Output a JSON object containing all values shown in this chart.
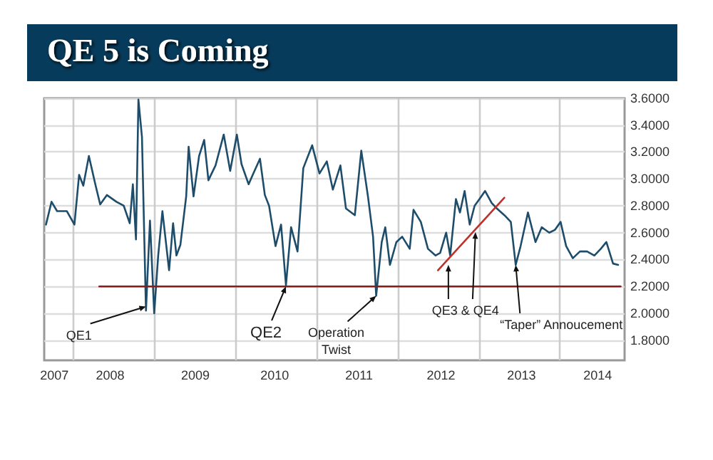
{
  "chart_data": {
    "type": "line",
    "title": "QE 5 is Coming",
    "xlim": [
      "2007-08-25",
      "2014-10-19"
    ],
    "xticks": [
      {
        "value": "2007-10-10",
        "label": "2007"
      },
      {
        "value": "2008-06-17",
        "label": "2008"
      },
      {
        "value": "2009-07-05",
        "label": "2009"
      },
      {
        "value": "2010-06-27",
        "label": "2010"
      },
      {
        "value": "2011-07-12",
        "label": "2011"
      },
      {
        "value": "2012-07-15",
        "label": "2012"
      },
      {
        "value": "2013-07-12",
        "label": "2013"
      },
      {
        "value": "2014-06-20",
        "label": "2014"
      },
      {
        "value": "2008-01-01",
        "label": null
      },
      {
        "value": "2009-01-01",
        "label": null
      },
      {
        "value": "2010-01-01",
        "label": null
      },
      {
        "value": "2011-01-01",
        "label": null
      },
      {
        "value": "2012-01-01",
        "label": null
      },
      {
        "value": "2013-01-01",
        "label": null
      },
      {
        "value": "2014-01-01",
        "label": null
      }
    ],
    "ylim": [
      1.65,
      3.6
    ],
    "yticks": [
      {
        "value": 1.8,
        "label": "1.8000"
      },
      {
        "value": 2.0,
        "label": "2.0000"
      },
      {
        "value": 2.2,
        "label": "2.2000"
      },
      {
        "value": 2.4,
        "label": "2.4000"
      },
      {
        "value": 2.6,
        "label": "2.6000"
      },
      {
        "value": 2.8,
        "label": "2.8000"
      },
      {
        "value": 3.0,
        "label": "3.0000"
      },
      {
        "value": 3.2,
        "label": "3.2000"
      },
      {
        "value": 3.4,
        "label": "3.4000"
      },
      {
        "value": 3.6,
        "label": "3.6000"
      }
    ],
    "grid": true,
    "series": [
      {
        "color": "#1e4d6b",
        "x": [
          "2007-09-02",
          "2007-09-27",
          "2007-10-22",
          "2007-12-05",
          "2008-01-08",
          "2008-01-29",
          "2008-02-17",
          "2008-03-13",
          "2008-04-11",
          "2008-05-03",
          "2008-06-02",
          "2008-07-15",
          "2008-08-17",
          "2008-09-13",
          "2008-09-27",
          "2008-10-11",
          "2008-10-22",
          "2008-11-07",
          "2008-11-25",
          "2008-12-13",
          "2009-01-01",
          "2009-01-19",
          "2009-02-07",
          "2009-03-09",
          "2009-03-27",
          "2009-04-11",
          "2009-04-29",
          "2009-05-25",
          "2009-06-05",
          "2009-06-27",
          "2009-07-22",
          "2009-08-14",
          "2009-09-02",
          "2009-10-04",
          "2009-11-10",
          "2009-12-09",
          "2010-01-08",
          "2010-01-29",
          "2010-03-02",
          "2010-03-23",
          "2010-04-22",
          "2010-05-14",
          "2010-06-02",
          "2010-07-01",
          "2010-07-26",
          "2010-08-17",
          "2010-09-09",
          "2010-10-08",
          "2010-11-03",
          "2010-12-13",
          "2011-01-15",
          "2011-02-17",
          "2011-03-16",
          "2011-04-19",
          "2011-05-14",
          "2011-06-23",
          "2011-07-22",
          "2011-08-21",
          "2011-09-13",
          "2011-09-27",
          "2011-10-22",
          "2011-11-07",
          "2011-11-28",
          "2011-12-27",
          "2012-01-22",
          "2012-02-25",
          "2012-03-13",
          "2012-04-15",
          "2012-05-17",
          "2012-06-20",
          "2012-07-11",
          "2012-08-07",
          "2012-08-25",
          "2012-09-20",
          "2012-10-08",
          "2012-10-29",
          "2012-11-21",
          "2012-12-13",
          "2013-01-04",
          "2013-01-29",
          "2013-02-28",
          "2013-03-23",
          "2013-04-26",
          "2013-05-25",
          "2013-06-16",
          "2013-07-08",
          "2013-08-10",
          "2013-09-13",
          "2013-10-11",
          "2013-11-14",
          "2013-12-09",
          "2014-01-04",
          "2014-01-29",
          "2014-02-28",
          "2014-04-01",
          "2014-05-03",
          "2014-06-05",
          "2014-07-04",
          "2014-07-29",
          "2014-08-28",
          "2014-09-20"
        ],
        "values": [
          2.66,
          2.83,
          2.76,
          2.76,
          2.66,
          3.03,
          2.95,
          3.17,
          2.96,
          2.81,
          2.88,
          2.83,
          2.8,
          2.67,
          2.96,
          2.55,
          3.59,
          3.31,
          2.02,
          2.69,
          2.0,
          2.43,
          2.76,
          2.32,
          2.67,
          2.43,
          2.51,
          2.87,
          3.24,
          2.87,
          3.17,
          3.29,
          2.99,
          3.1,
          3.33,
          3.06,
          3.33,
          3.11,
          2.96,
          3.04,
          3.15,
          2.88,
          2.8,
          2.5,
          2.66,
          2.21,
          2.64,
          2.46,
          3.08,
          3.25,
          3.04,
          3.13,
          2.92,
          3.1,
          2.78,
          2.73,
          3.21,
          2.87,
          2.57,
          2.13,
          2.53,
          2.64,
          2.36,
          2.53,
          2.57,
          2.48,
          2.77,
          2.68,
          2.48,
          2.43,
          2.45,
          2.6,
          2.43,
          2.85,
          2.75,
          2.91,
          2.66,
          2.8,
          2.85,
          2.91,
          2.82,
          2.78,
          2.73,
          2.68,
          2.36,
          2.5,
          2.75,
          2.53,
          2.64,
          2.6,
          2.62,
          2.68,
          2.5,
          2.41,
          2.46,
          2.46,
          2.43,
          2.48,
          2.53,
          2.37,
          2.36
        ]
      },
      {
        "color": "#8b1a1a",
        "x": [
          "2008-04-29",
          "2014-10-01"
        ],
        "values": [
          2.2,
          2.2
        ]
      },
      {
        "color": "#c0302a",
        "x": [
          "2012-07-01",
          "2013-04-26"
        ],
        "values": [
          2.32,
          2.86
        ]
      }
    ],
    "annotations": [
      {
        "text": "QE1",
        "x": "2008-11-25",
        "y": 2.05
      },
      {
        "text": "QE2",
        "x": "2010-08-17",
        "y": 2.2
      },
      {
        "text": "Operation\nTwist",
        "x": "2011-09-27",
        "y": 2.13
      },
      {
        "text": "QE3 & QE4",
        "x": "2012-08-17",
        "y": 2.36
      },
      {
        "text": "“Taper” Annoucement",
        "x": "2013-06-16",
        "y": 2.36
      }
    ]
  }
}
